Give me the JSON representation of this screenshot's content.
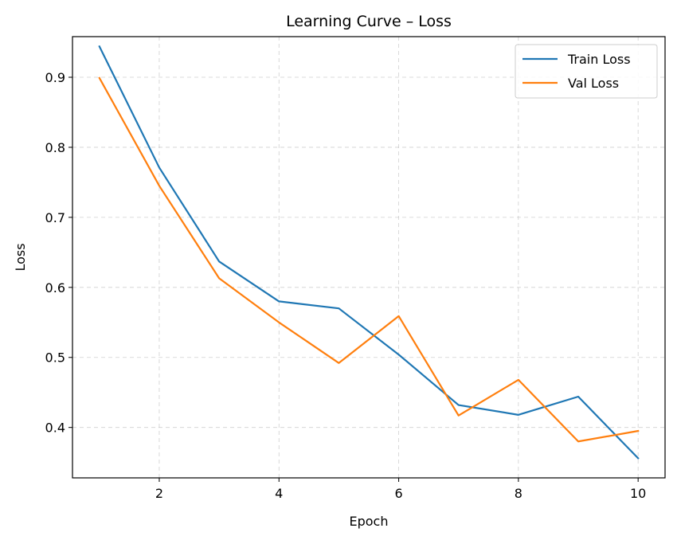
{
  "chart_data": {
    "type": "line",
    "title": "Learning Curve – Loss",
    "xlabel": "Epoch",
    "ylabel": "Loss",
    "x": [
      1,
      2,
      3,
      4,
      5,
      6,
      7,
      8,
      9,
      10
    ],
    "xlim": [
      0.55,
      10.45
    ],
    "ylim": [
      0.328,
      0.958
    ],
    "xticks": [
      2,
      4,
      6,
      8,
      10
    ],
    "yticks": [
      0.4,
      0.5,
      0.6,
      0.7,
      0.8,
      0.9
    ],
    "xtick_labels": [
      "2",
      "4",
      "6",
      "8",
      "10"
    ],
    "ytick_labels": [
      "0.4",
      "0.5",
      "0.6",
      "0.7",
      "0.8",
      "0.9"
    ],
    "grid": true,
    "legend_position": "top-right",
    "series": [
      {
        "name": "Train Loss",
        "color": "#1f77b4",
        "values": [
          0.944,
          0.771,
          0.637,
          0.58,
          0.57,
          0.504,
          0.432,
          0.418,
          0.444,
          0.356
        ]
      },
      {
        "name": "Val Loss",
        "color": "#ff7f0e",
        "values": [
          0.899,
          0.745,
          0.613,
          0.55,
          0.492,
          0.559,
          0.417,
          0.468,
          0.38,
          0.395
        ]
      }
    ]
  }
}
